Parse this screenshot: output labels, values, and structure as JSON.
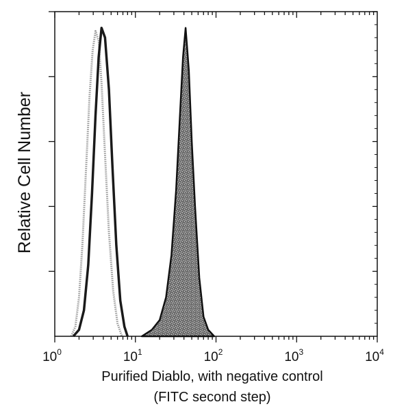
{
  "chart_data": {
    "type": "area",
    "title": "",
    "xlabel_line1": "Purified Diablo, with negative control",
    "xlabel_line2": "(FITC second step)",
    "ylabel": "Relative Cell Number",
    "x_scale": "log",
    "xlim": [
      1,
      10000
    ],
    "ylim": [
      0,
      100
    ],
    "x_ticks": [
      {
        "base": "10",
        "exp": "0"
      },
      {
        "base": "10",
        "exp": "1"
      },
      {
        "base": "10",
        "exp": "2"
      },
      {
        "base": "10",
        "exp": "3"
      },
      {
        "base": "10",
        "exp": "4"
      }
    ],
    "grid": false,
    "legend": "none",
    "colors": {
      "axis": "#111111",
      "negative_control_outline": "#9a9a9a",
      "negative_control_shaded_outline": "#1a1a1a",
      "diablo_fill": "#6f6f6f",
      "diablo_outline": "#111111"
    },
    "series": [
      {
        "style": "dotted-outline",
        "x": [
          1.6,
          1.8,
          2.0,
          2.2,
          2.45,
          2.7,
          2.95,
          3.2,
          3.5,
          3.8,
          4.2,
          4.7,
          5.3,
          6.0,
          6.8
        ],
        "y": [
          0,
          3,
          12,
          28,
          52,
          74,
          88,
          94,
          91,
          78,
          56,
          32,
          14,
          4,
          0
        ]
      },
      {
        "style": "solid-outline",
        "x": [
          1.7,
          2.0,
          2.3,
          2.6,
          2.9,
          3.2,
          3.5,
          3.8,
          4.2,
          4.7,
          5.2,
          5.8,
          6.5,
          7.3,
          8.0
        ],
        "y": [
          0,
          2,
          8,
          22,
          44,
          68,
          86,
          95,
          92,
          76,
          52,
          28,
          11,
          3,
          0
        ]
      },
      {
        "style": "filled",
        "x": [
          12,
          16,
          20,
          24,
          28,
          32,
          36,
          39,
          42,
          46,
          50,
          55,
          62,
          70,
          80,
          95
        ],
        "y": [
          0,
          2,
          5,
          12,
          25,
          45,
          70,
          86,
          95,
          82,
          60,
          40,
          18,
          6,
          2,
          0
        ]
      }
    ]
  }
}
